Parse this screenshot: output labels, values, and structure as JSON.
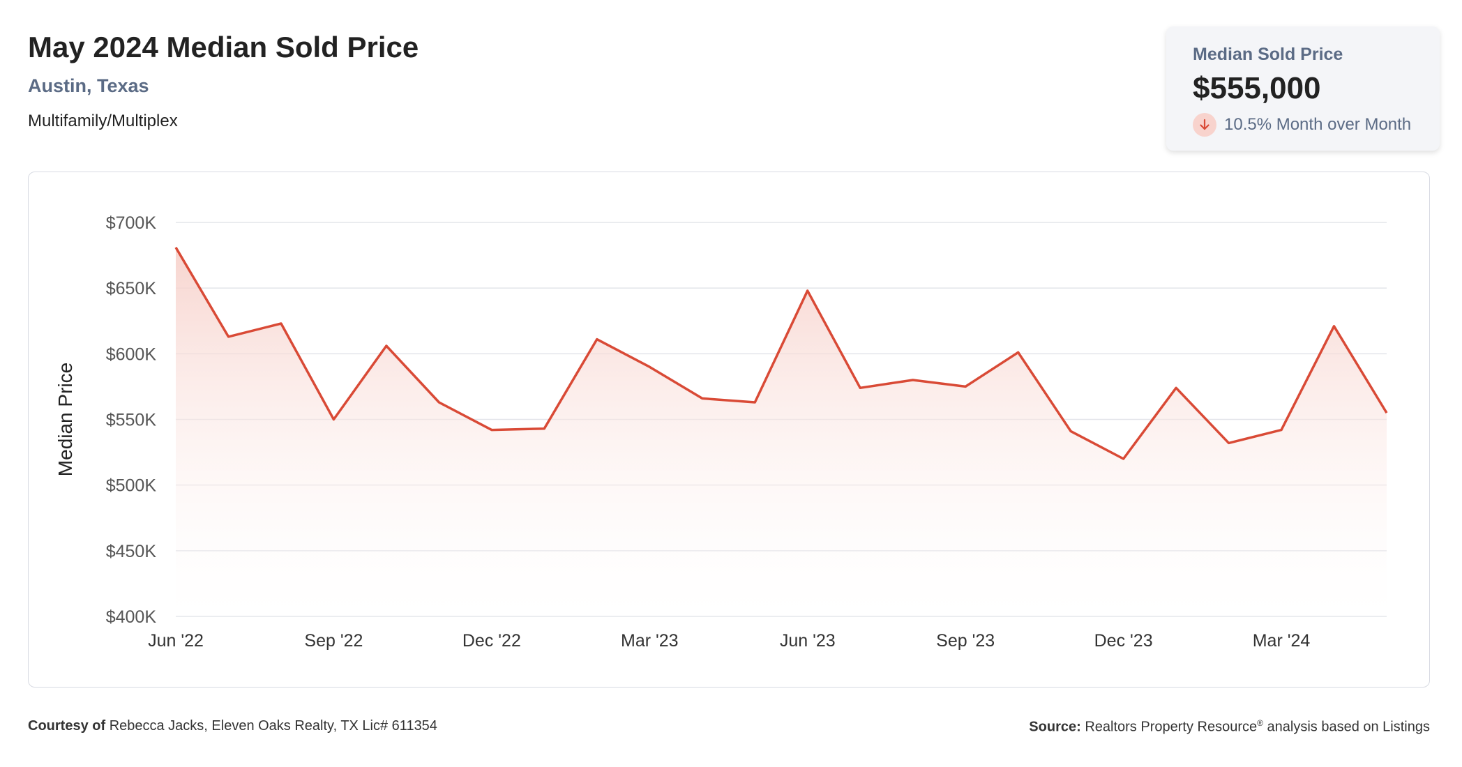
{
  "header": {
    "title": "May 2024 Median Sold Price",
    "location": "Austin, Texas",
    "property_type": "Multifamily/Multiplex"
  },
  "kpi": {
    "label": "Median Sold Price",
    "value": "$555,000",
    "change": "10.5% Month over Month",
    "direction_icon": "arrow-down-icon"
  },
  "footer": {
    "courtesy_label": "Courtesy of",
    "courtesy_text": "Rebecca Jacks, Eleven Oaks Realty, TX Lic# 611354",
    "source_label": "Source:",
    "source_text": "Realtors Property Resource",
    "source_mark": "®",
    "source_suffix": "analysis based on Listings"
  },
  "colors": {
    "line": "#d94a36",
    "fill_top": "#f6cdc6",
    "grid": "#e3e5ea",
    "axis_text": "#555555",
    "accent_text": "#5b6b85"
  },
  "chart_data": {
    "type": "area",
    "ylabel": "Median Price",
    "ylim": [
      400000,
      700000
    ],
    "y_ticks": [
      {
        "value": 400000,
        "label": "$400K"
      },
      {
        "value": 450000,
        "label": "$450K"
      },
      {
        "value": 500000,
        "label": "$500K"
      },
      {
        "value": 550000,
        "label": "$550K"
      },
      {
        "value": 600000,
        "label": "$600K"
      },
      {
        "value": 650000,
        "label": "$650K"
      },
      {
        "value": 700000,
        "label": "$700K"
      }
    ],
    "x_ticks": [
      {
        "index": 0,
        "label": "Jun '22"
      },
      {
        "index": 3,
        "label": "Sep '22"
      },
      {
        "index": 6,
        "label": "Dec '22"
      },
      {
        "index": 9,
        "label": "Mar '23"
      },
      {
        "index": 12,
        "label": "Jun '23"
      },
      {
        "index": 15,
        "label": "Sep '23"
      },
      {
        "index": 18,
        "label": "Dec '23"
      },
      {
        "index": 21,
        "label": "Mar '24"
      }
    ],
    "x": [
      "2022-06",
      "2022-07",
      "2022-08",
      "2022-09",
      "2022-10",
      "2022-11",
      "2022-12",
      "2023-01",
      "2023-02",
      "2023-03",
      "2023-04",
      "2023-05",
      "2023-06",
      "2023-07",
      "2023-08",
      "2023-09",
      "2023-10",
      "2023-11",
      "2023-12",
      "2024-01",
      "2024-02",
      "2024-03",
      "2024-04",
      "2024-05"
    ],
    "series": [
      {
        "values": [
          681000,
          613000,
          623000,
          550000,
          606000,
          563000,
          542000,
          543000,
          611000,
          590000,
          566000,
          563000,
          648000,
          574000,
          580000,
          575000,
          601000,
          541000,
          520000,
          574000,
          532000,
          542000,
          621000,
          555000
        ]
      }
    ],
    "grid": true,
    "legend": "none"
  }
}
